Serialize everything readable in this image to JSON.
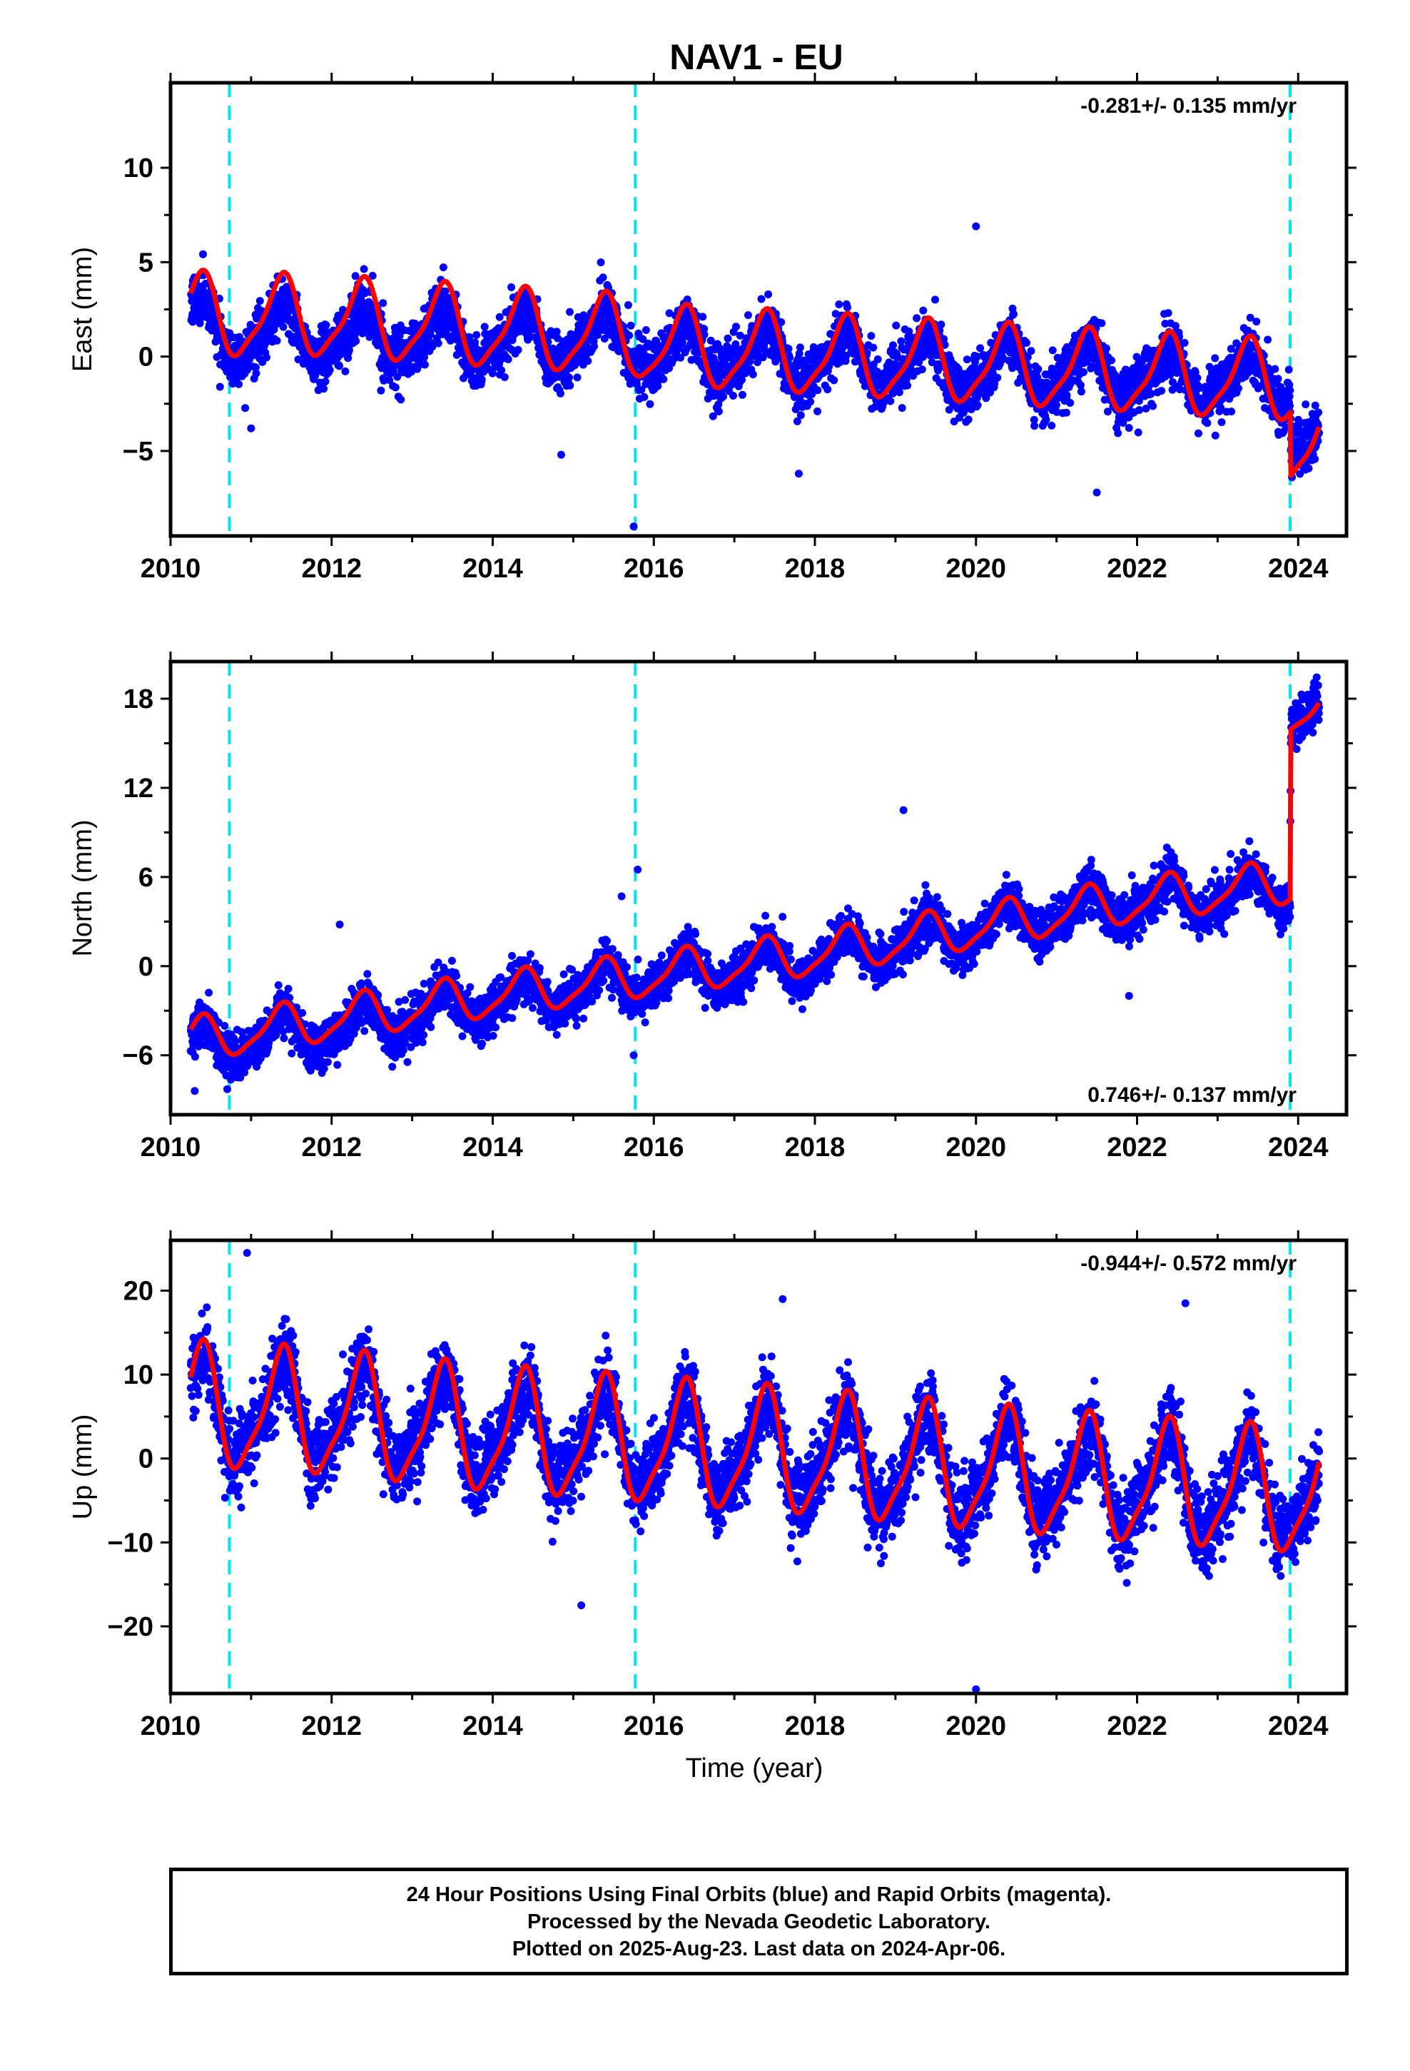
{
  "title": "NAV1 - EU",
  "xlabel": "Time (year)",
  "colors": {
    "data": "#0000ff",
    "model": "#ff0000",
    "offset": "#00e5ee",
    "frame": "#000000"
  },
  "footer": {
    "line1": "24 Hour Positions Using Final Orbits (blue) and Rapid Orbits (magenta).",
    "line2": "Processed by the Nevada Geodetic Laboratory.",
    "line3": "Plotted on 2025-Aug-23. Last data on 2024-Apr-06."
  },
  "chart_data": [
    {
      "type": "scatter",
      "ylabel": "East (mm)",
      "rate_label": "-0.281+/- 0.135 mm/yr",
      "rate_position": "top-right",
      "xlim": [
        2010,
        2024.6
      ],
      "ylim": [
        -9.5,
        14.5
      ],
      "xticks": [
        2010,
        2012,
        2014,
        2016,
        2018,
        2020,
        2022,
        2024
      ],
      "yticks": [
        -5,
        0,
        5,
        10
      ],
      "offset_lines": [
        2010.73,
        2015.77,
        2023.9
      ],
      "series": [
        {
          "kind": "points",
          "amplitude": 1.3,
          "noise": 1.3,
          "x_start": 2010.25,
          "x_end": 2024.26,
          "trend_points": [
            [
              2010.25,
              2.0
            ],
            [
              2010.73,
              1.2
            ],
            [
              2015.77,
              0.8
            ],
            [
              2016.0,
              0.3
            ],
            [
              2023.9,
              -1.4
            ],
            [
              2023.91,
              -3.8
            ],
            [
              2024.26,
              -4.8
            ]
          ],
          "outliers": [
            [
              2020.0,
              6.9
            ],
            [
              2017.8,
              -6.2
            ],
            [
              2014.85,
              -5.2
            ],
            [
              2015.75,
              -9.0
            ],
            [
              2021.5,
              -7.2
            ],
            [
              2011.0,
              -3.8
            ]
          ]
        },
        {
          "kind": "model",
          "amplitude": 2.0,
          "trend_points": [
            [
              2010.25,
              2.3
            ],
            [
              2010.73,
              2.0
            ],
            [
              2011.5,
              2.1
            ],
            [
              2015.77,
              1.0
            ],
            [
              2016.0,
              0.5
            ],
            [
              2023.9,
              -1.4
            ],
            [
              2023.91,
              -4.8
            ],
            [
              2024.26,
              -4.9
            ]
          ]
        }
      ]
    },
    {
      "type": "scatter",
      "ylabel": "North (mm)",
      "rate_label": "0.746+/- 0.137 mm/yr",
      "rate_position": "bottom-right",
      "xlim": [
        2010,
        2024.6
      ],
      "ylim": [
        -10,
        20.5
      ],
      "xticks": [
        2010,
        2012,
        2014,
        2016,
        2018,
        2020,
        2022,
        2024
      ],
      "yticks": [
        -6,
        0,
        6,
        12,
        18
      ],
      "offset_lines": [
        2010.73,
        2015.77,
        2023.9
      ],
      "series": [
        {
          "kind": "points",
          "amplitude": 1.2,
          "noise": 1.4,
          "x_start": 2010.25,
          "x_end": 2024.26,
          "trend_points": [
            [
              2010.25,
              -5.5
            ],
            [
              2012.0,
              -4.2
            ],
            [
              2014.0,
              -2.3
            ],
            [
              2016.0,
              -0.8
            ],
            [
              2018.0,
              0.4
            ],
            [
              2020.0,
              2.5
            ],
            [
              2022.0,
              4.3
            ],
            [
              2023.9,
              5.2
            ],
            [
              2023.91,
              17.2
            ],
            [
              2024.26,
              17.2
            ]
          ],
          "outliers": [
            [
              2019.1,
              10.5
            ],
            [
              2015.8,
              6.5
            ],
            [
              2015.75,
              -6.0
            ],
            [
              2021.9,
              -2.0
            ],
            [
              2010.3,
              -8.4
            ],
            [
              2012.1,
              2.8
            ],
            [
              2015.6,
              4.7
            ]
          ]
        },
        {
          "kind": "model",
          "amplitude": 1.4,
          "trend_points": [
            [
              2010.25,
              -5.0
            ],
            [
              2012.0,
              -3.6
            ],
            [
              2014.0,
              -2.0
            ],
            [
              2016.0,
              -0.6
            ],
            [
              2018.0,
              0.8
            ],
            [
              2020.0,
              2.6
            ],
            [
              2022.0,
              4.4
            ],
            [
              2023.9,
              5.6
            ],
            [
              2023.91,
              17.0
            ],
            [
              2024.26,
              16.9
            ]
          ]
        }
      ]
    },
    {
      "type": "scatter",
      "ylabel": "Up (mm)",
      "rate_label": "-0.944+/- 0.572 mm/yr",
      "rate_position": "top-right",
      "xlim": [
        2010,
        2024.6
      ],
      "ylim": [
        -28,
        26
      ],
      "xticks": [
        2010,
        2012,
        2014,
        2016,
        2018,
        2020,
        2022,
        2024
      ],
      "yticks": [
        -20,
        -10,
        0,
        10,
        20
      ],
      "offset_lines": [
        2010.73,
        2015.77,
        2023.9
      ],
      "series": [
        {
          "kind": "points",
          "amplitude": 5.5,
          "noise": 4.2,
          "x_start": 2010.25,
          "x_end": 2024.26,
          "trend_points": [
            [
              2010.25,
              6.0
            ],
            [
              2012.0,
              5.0
            ],
            [
              2014.0,
              3.0
            ],
            [
              2016.0,
              1.5
            ],
            [
              2018.0,
              0.0
            ],
            [
              2020.0,
              -1.5
            ],
            [
              2022.0,
              -3.0
            ],
            [
              2023.9,
              -4.2
            ],
            [
              2024.26,
              -4.5
            ]
          ],
          "outliers": [
            [
              2020.0,
              -27.5
            ],
            [
              2010.95,
              24.5
            ],
            [
              2022.6,
              18.5
            ],
            [
              2017.6,
              19.0
            ],
            [
              2015.1,
              -17.5
            ]
          ]
        },
        {
          "kind": "model",
          "amplitude": 7.0,
          "trend_points": [
            [
              2010.25,
              6.0
            ],
            [
              2012.0,
              5.0
            ],
            [
              2014.0,
              3.0
            ],
            [
              2016.0,
              1.7
            ],
            [
              2018.0,
              0.2
            ],
            [
              2020.0,
              -1.5
            ],
            [
              2022.0,
              -3.0
            ],
            [
              2023.9,
              -4.2
            ],
            [
              2024.26,
              -4.5
            ]
          ]
        }
      ]
    }
  ]
}
